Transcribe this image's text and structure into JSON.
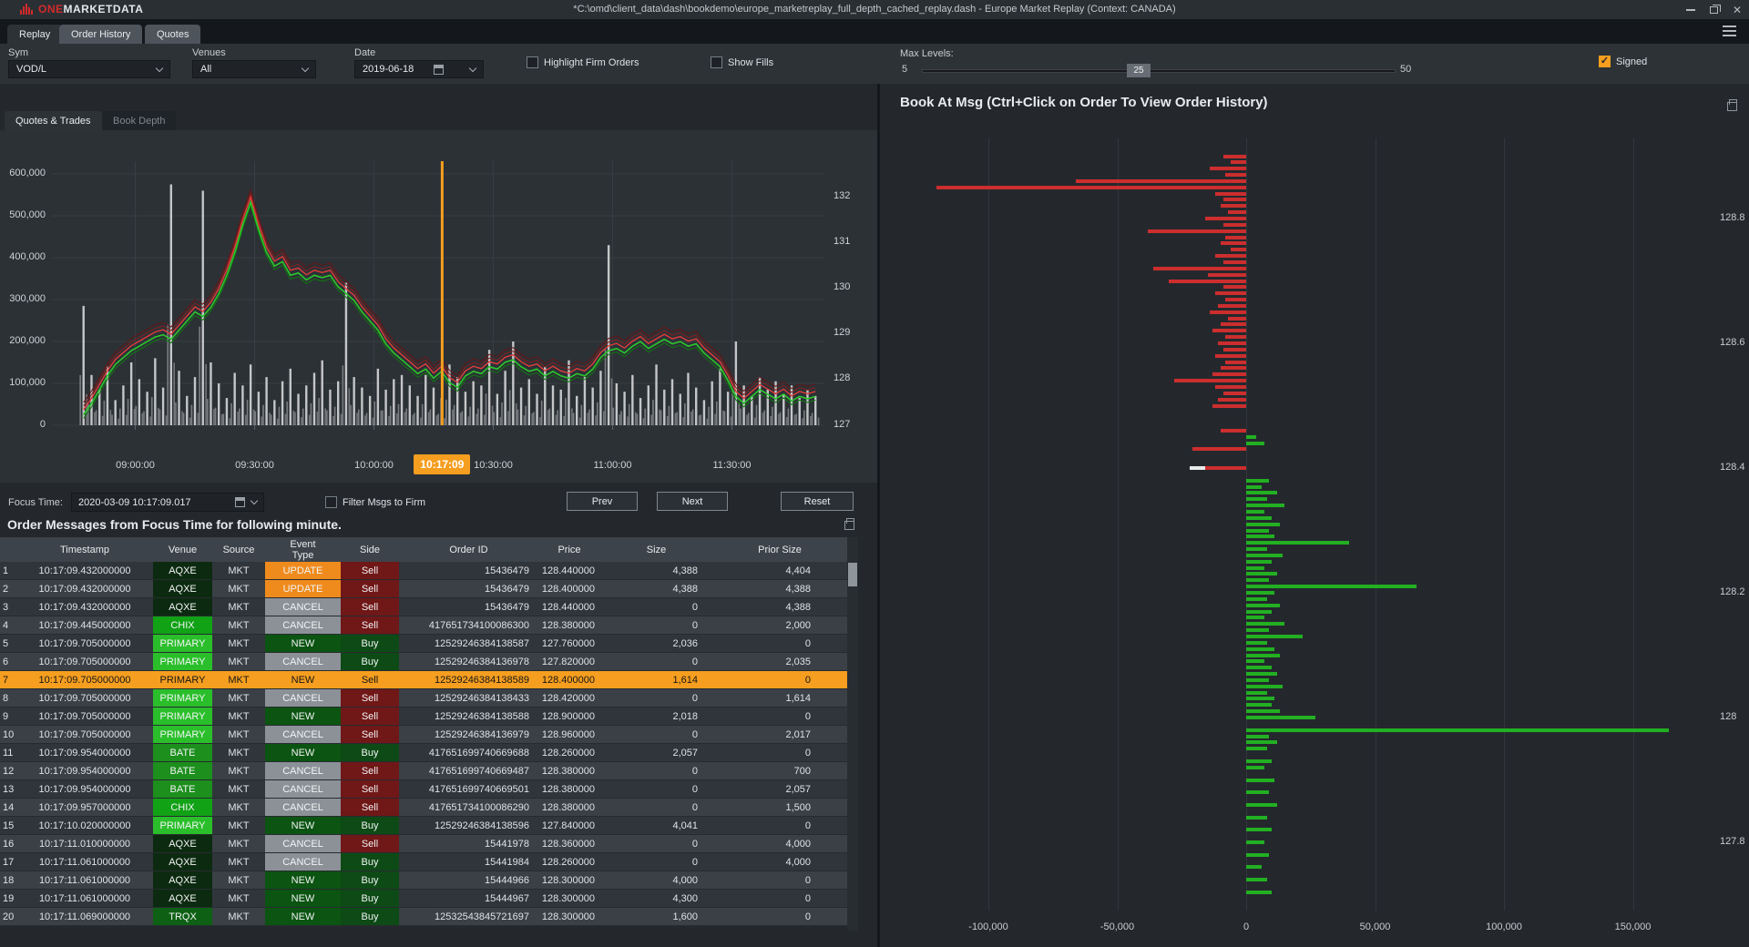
{
  "window": {
    "title": "*C:\\omd\\client_data\\dash\\bookdemo\\europe_marketreplay_full_depth_cached_replay.dash - Europe Market Replay (Context: CANADA)",
    "brand_one": "ONE",
    "brand_rest": "MARKETDATA"
  },
  "tabs": [
    {
      "label": "Replay",
      "active": true
    },
    {
      "label": "Order History",
      "active": false
    },
    {
      "label": "Quotes",
      "active": false
    }
  ],
  "toolbar": {
    "sym_label": "Sym",
    "sym_value": "VOD/L",
    "venues_label": "Venues",
    "venues_value": "All",
    "date_label": "Date",
    "date_value": "2019-06-18",
    "highlight_firm_orders_label": "Highlight Firm Orders",
    "show_fills_label": "Show Fills",
    "max_levels_label": "Max Levels:",
    "slider_min": "5",
    "slider_value": "25",
    "slider_max": "50",
    "signed_label": "Signed"
  },
  "left_panel": {
    "tab_quotes_trades": "Quotes & Trades",
    "tab_book_depth": "Book Depth",
    "panel_title": "Quotes & Trades",
    "focus_label": "Focus Time:",
    "focus_value": "2020-03-09 10:17:09.017",
    "filter_label": "Filter Msgs to Firm",
    "prev_label": "Prev",
    "next_label": "Next",
    "reset_label": "Reset",
    "messages_title": "Order Messages from Focus Time for following minute."
  },
  "right_panel": {
    "title": "Book At Msg  (Ctrl+Click on Order To View Order History)"
  },
  "table": {
    "columns": [
      "",
      "Timestamp",
      "Venue",
      "Source",
      "Event Type",
      "Side",
      "Order ID",
      "Price",
      "Size",
      "Prior Size"
    ],
    "highlighted_row": 7,
    "rows": [
      {
        "n": "1",
        "timestamp": "10:17:09.432000000",
        "venue": "AQXE",
        "source": "MKT",
        "event": "UPDATE",
        "side": "Sell",
        "order_id": "15436479",
        "price": "128.440000",
        "size": "4,388",
        "prior": "4,404"
      },
      {
        "n": "2",
        "timestamp": "10:17:09.432000000",
        "venue": "AQXE",
        "source": "MKT",
        "event": "UPDATE",
        "side": "Sell",
        "order_id": "15436479",
        "price": "128.400000",
        "size": "4,388",
        "prior": "4,388"
      },
      {
        "n": "3",
        "timestamp": "10:17:09.432000000",
        "venue": "AQXE",
        "source": "MKT",
        "event": "CANCEL",
        "side": "Sell",
        "order_id": "15436479",
        "price": "128.440000",
        "size": "0",
        "prior": "4,388"
      },
      {
        "n": "4",
        "timestamp": "10:17:09.445000000",
        "venue": "CHIX",
        "source": "MKT",
        "event": "CANCEL",
        "side": "Sell",
        "order_id": "417651734100086300",
        "price": "128.380000",
        "size": "0",
        "prior": "2,000"
      },
      {
        "n": "5",
        "timestamp": "10:17:09.705000000",
        "venue": "PRIMARY",
        "source": "MKT",
        "event": "NEW",
        "side": "Buy",
        "order_id": "12529246384138587",
        "price": "127.760000",
        "size": "2,036",
        "prior": "0"
      },
      {
        "n": "6",
        "timestamp": "10:17:09.705000000",
        "venue": "PRIMARY",
        "source": "MKT",
        "event": "CANCEL",
        "side": "Buy",
        "order_id": "12529246384136978",
        "price": "127.820000",
        "size": "0",
        "prior": "2,035"
      },
      {
        "n": "7",
        "timestamp": "10:17:09.705000000",
        "venue": "PRIMARY",
        "source": "MKT",
        "event": "NEW",
        "side": "Sell",
        "order_id": "12529246384138589",
        "price": "128.400000",
        "size": "1,614",
        "prior": "0"
      },
      {
        "n": "8",
        "timestamp": "10:17:09.705000000",
        "venue": "PRIMARY",
        "source": "MKT",
        "event": "CANCEL",
        "side": "Sell",
        "order_id": "12529246384138433",
        "price": "128.420000",
        "size": "0",
        "prior": "1,614"
      },
      {
        "n": "9",
        "timestamp": "10:17:09.705000000",
        "venue": "PRIMARY",
        "source": "MKT",
        "event": "NEW",
        "side": "Sell",
        "order_id": "12529246384138588",
        "price": "128.900000",
        "size": "2,018",
        "prior": "0"
      },
      {
        "n": "10",
        "timestamp": "10:17:09.705000000",
        "venue": "PRIMARY",
        "source": "MKT",
        "event": "CANCEL",
        "side": "Sell",
        "order_id": "12529246384136979",
        "price": "128.960000",
        "size": "0",
        "prior": "2,017"
      },
      {
        "n": "11",
        "timestamp": "10:17:09.954000000",
        "venue": "BATE",
        "source": "MKT",
        "event": "NEW",
        "side": "Buy",
        "order_id": "417651699740669688",
        "price": "128.260000",
        "size": "2,057",
        "prior": "0"
      },
      {
        "n": "12",
        "timestamp": "10:17:09.954000000",
        "venue": "BATE",
        "source": "MKT",
        "event": "CANCEL",
        "side": "Sell",
        "order_id": "417651699740669487",
        "price": "128.380000",
        "size": "0",
        "prior": "700"
      },
      {
        "n": "13",
        "timestamp": "10:17:09.954000000",
        "venue": "BATE",
        "source": "MKT",
        "event": "CANCEL",
        "side": "Sell",
        "order_id": "417651699740669501",
        "price": "128.380000",
        "size": "0",
        "prior": "2,057"
      },
      {
        "n": "14",
        "timestamp": "10:17:09.957000000",
        "venue": "CHIX",
        "source": "MKT",
        "event": "CANCEL",
        "side": "Sell",
        "order_id": "417651734100086290",
        "price": "128.380000",
        "size": "0",
        "prior": "1,500"
      },
      {
        "n": "15",
        "timestamp": "10:17:10.020000000",
        "venue": "PRIMARY",
        "source": "MKT",
        "event": "NEW",
        "side": "Buy",
        "order_id": "12529246384138596",
        "price": "127.840000",
        "size": "4,041",
        "prior": "0"
      },
      {
        "n": "16",
        "timestamp": "10:17:11.010000000",
        "venue": "AQXE",
        "source": "MKT",
        "event": "CANCEL",
        "side": "Sell",
        "order_id": "15441978",
        "price": "128.360000",
        "size": "0",
        "prior": "4,000"
      },
      {
        "n": "17",
        "timestamp": "10:17:11.061000000",
        "venue": "AQXE",
        "source": "MKT",
        "event": "CANCEL",
        "side": "Buy",
        "order_id": "15441984",
        "price": "128.260000",
        "size": "0",
        "prior": "4,000"
      },
      {
        "n": "18",
        "timestamp": "10:17:11.061000000",
        "venue": "AQXE",
        "source": "MKT",
        "event": "NEW",
        "side": "Buy",
        "order_id": "15444966",
        "price": "128.300000",
        "size": "4,000",
        "prior": "0"
      },
      {
        "n": "19",
        "timestamp": "10:17:11.061000000",
        "venue": "AQXE",
        "source": "MKT",
        "event": "NEW",
        "side": "Buy",
        "order_id": "15444967",
        "price": "128.300000",
        "size": "4,300",
        "prior": "0"
      },
      {
        "n": "20",
        "timestamp": "10:17:11.069000000",
        "venue": "TRQX",
        "source": "MKT",
        "event": "NEW",
        "side": "Buy",
        "order_id": "12532543845721697",
        "price": "128.300000",
        "size": "1,600",
        "prior": "0"
      }
    ]
  },
  "colors": {
    "accent_orange": "#f59e1f",
    "venue": {
      "AQXE": "#0c2a10",
      "CHIX": "#11a216",
      "PRIMARY": "#2abf2a",
      "BATE": "#1c8f1c",
      "TRQX": "#0e6014"
    },
    "event": {
      "UPDATE": "#ef8b1d",
      "CANCEL": "#8b9197",
      "NEW": "#0b5411"
    },
    "side": {
      "Sell": "#701717",
      "Buy": "#0d4a15"
    },
    "ask_red": "#cc2e2e",
    "bid_green": "#22b022"
  },
  "chart_data": [
    {
      "type": "line",
      "title": "Quotes & Trades",
      "xlabel": "",
      "ylabel_left": "volume",
      "ylabel_right": "price",
      "x_ticks": [
        "09:00:00",
        "09:30:00",
        "10:00:00",
        "10:30:00",
        "11:00:00",
        "11:30:00"
      ],
      "y_left_ticks": [
        "0",
        "100,000",
        "200,000",
        "300,000",
        "400,000",
        "500,000",
        "600,000"
      ],
      "y_right_ticks": [
        "132",
        "131",
        "130",
        "129",
        "128",
        "127"
      ],
      "focus_marker": {
        "label": "10:17:09",
        "time_min_from_0900": 77.15
      },
      "t_start_min": -13,
      "t_step_min": 2,
      "series": [
        {
          "name": "mid-price",
          "values": [
            127.25,
            127.5,
            127.8,
            128.1,
            128.35,
            128.5,
            128.65,
            128.75,
            128.85,
            128.95,
            129.0,
            128.9,
            129.1,
            129.3,
            129.5,
            129.4,
            129.6,
            129.9,
            130.3,
            130.8,
            131.4,
            131.9,
            131.3,
            130.8,
            130.5,
            130.6,
            130.3,
            130.35,
            130.2,
            130.3,
            130.25,
            130.3,
            130.05,
            129.9,
            129.75,
            129.5,
            129.3,
            129.1,
            128.8,
            128.6,
            128.45,
            128.3,
            128.15,
            128.25,
            128.05,
            128.2,
            127.95,
            127.85,
            128.1,
            128.2,
            128.15,
            128.3,
            128.25,
            128.4,
            128.45,
            128.3,
            128.2,
            128.25,
            128.1,
            128.2,
            128.1,
            128.05,
            128.15,
            128.1,
            128.25,
            128.5,
            128.65,
            128.7,
            128.6,
            128.75,
            128.85,
            128.7,
            128.8,
            128.9,
            128.8,
            128.85,
            128.75,
            128.8,
            128.6,
            128.45,
            128.3,
            128.0,
            127.65,
            127.5,
            127.65,
            127.8,
            127.7,
            127.6,
            127.7,
            127.55,
            127.65,
            127.6,
            127.65
          ]
        },
        {
          "name": "volume-thousands",
          "values": [
            285,
            120,
            85,
            140,
            60,
            95,
            150,
            110,
            80,
            160,
            90,
            575,
            130,
            70,
            115,
            560,
            150,
            100,
            65,
            125,
            95,
            145,
            80,
            115,
            60,
            105,
            135,
            75,
            95,
            125,
            155,
            85,
            105,
            340,
            115,
            90,
            70,
            135,
            85,
            110,
            120,
            95,
            70,
            120,
            90,
            65,
            145,
            115,
            80,
            105,
            95,
            180,
            75,
            130,
            200,
            90,
            110,
            75,
            140,
            95,
            85,
            155,
            70,
            115,
            90,
            130,
            430,
            100,
            80,
            120,
            65,
            95,
            145,
            85,
            110,
            75,
            125,
            90,
            60,
            105,
            135,
            80,
            200,
            95,
            70,
            115,
            85,
            105,
            75,
            95,
            65,
            85,
            70
          ]
        }
      ],
      "line_offsets": [
        {
          "name": "ask-depth-outer",
          "offset": 0.24,
          "color": "#641616",
          "w": 1
        },
        {
          "name": "ask-depth",
          "offset": 0.16,
          "color": "#8c1d1d",
          "w": 1
        },
        {
          "name": "ask",
          "offset": 0.08,
          "color": "#e23b3b",
          "w": 1.4
        },
        {
          "name": "bid-depth",
          "offset": -0.11,
          "color": "#0f7a0f",
          "w": 1
        },
        {
          "name": "bid",
          "offset": -0.03,
          "color": "#2bc82b",
          "w": 1.6
        }
      ],
      "ylim_left": [
        0,
        600000
      ],
      "ylim_right": [
        127,
        132
      ],
      "grid": true
    },
    {
      "type": "bar",
      "orientation": "horizontal",
      "title": "Book At Msg  (Ctrl+Click on Order To View Order History)",
      "x_ticks": [
        "-100,000",
        "-50,000",
        "0",
        "50,000",
        "100,000",
        "150,000"
      ],
      "x_tick_values": [
        -100000,
        -50000,
        0,
        50000,
        100000,
        150000
      ],
      "y_ticks": [
        "128.8",
        "128.6",
        "128.4",
        "128.2",
        "128",
        "127.8"
      ],
      "y_tick_values": [
        128.8,
        128.6,
        128.4,
        128.2,
        128.0,
        127.8
      ],
      "asks_price_size": [
        [
          128.9,
          9000
        ],
        [
          128.89,
          6000
        ],
        [
          128.88,
          14000
        ],
        [
          128.87,
          8000
        ],
        [
          128.86,
          66000
        ],
        [
          128.85,
          120000
        ],
        [
          128.84,
          12000
        ],
        [
          128.83,
          9000
        ],
        [
          128.82,
          10000
        ],
        [
          128.81,
          7000
        ],
        [
          128.8,
          16000
        ],
        [
          128.79,
          9000
        ],
        [
          128.78,
          38000
        ],
        [
          128.77,
          8000
        ],
        [
          128.76,
          10000
        ],
        [
          128.75,
          6000
        ],
        [
          128.74,
          12000
        ],
        [
          128.73,
          9000
        ],
        [
          128.72,
          36000
        ],
        [
          128.71,
          15000
        ],
        [
          128.7,
          30000
        ],
        [
          128.69,
          9000
        ],
        [
          128.68,
          12000
        ],
        [
          128.67,
          8000
        ],
        [
          128.66,
          11000
        ],
        [
          128.65,
          14000
        ],
        [
          128.64,
          7000
        ],
        [
          128.63,
          10000
        ],
        [
          128.62,
          13000
        ],
        [
          128.61,
          8000
        ],
        [
          128.6,
          11000
        ],
        [
          128.59,
          9000
        ],
        [
          128.58,
          12000
        ],
        [
          128.57,
          8000
        ],
        [
          128.56,
          10000
        ],
        [
          128.55,
          13000
        ],
        [
          128.54,
          28000
        ],
        [
          128.53,
          12000
        ],
        [
          128.52,
          9000
        ],
        [
          128.51,
          11000
        ],
        [
          128.5,
          13000
        ],
        [
          128.46,
          10000
        ],
        [
          128.43,
          21000
        ]
      ],
      "bids_price_size": [
        [
          128.45,
          4000
        ],
        [
          128.44,
          7000
        ],
        [
          128.38,
          9000
        ],
        [
          128.37,
          6000
        ],
        [
          128.36,
          12000
        ],
        [
          128.35,
          8000
        ],
        [
          128.34,
          15000
        ],
        [
          128.33,
          7000
        ],
        [
          128.32,
          10000
        ],
        [
          128.31,
          13000
        ],
        [
          128.3,
          9000
        ],
        [
          128.29,
          11000
        ],
        [
          128.28,
          40000
        ],
        [
          128.27,
          8000
        ],
        [
          128.26,
          14000
        ],
        [
          128.25,
          10000
        ],
        [
          128.24,
          7000
        ],
        [
          128.23,
          12000
        ],
        [
          128.22,
          9000
        ],
        [
          128.21,
          66000
        ],
        [
          128.2,
          11000
        ],
        [
          128.19,
          8000
        ],
        [
          128.18,
          13000
        ],
        [
          128.17,
          10000
        ],
        [
          128.16,
          7000
        ],
        [
          128.15,
          15000
        ],
        [
          128.14,
          9000
        ],
        [
          128.13,
          22000
        ],
        [
          128.12,
          8000
        ],
        [
          128.11,
          11000
        ],
        [
          128.1,
          13000
        ],
        [
          128.09,
          7000
        ],
        [
          128.08,
          10000
        ],
        [
          128.07,
          12000
        ],
        [
          128.06,
          9000
        ],
        [
          128.05,
          14000
        ],
        [
          128.04,
          8000
        ],
        [
          128.03,
          11000
        ],
        [
          128.02,
          10000
        ],
        [
          128.01,
          13000
        ],
        [
          128.0,
          27000
        ],
        [
          127.98,
          164000
        ],
        [
          127.97,
          9000
        ],
        [
          127.96,
          12000
        ],
        [
          127.95,
          8000
        ],
        [
          127.93,
          10000
        ],
        [
          127.92,
          7000
        ],
        [
          127.9,
          11000
        ],
        [
          127.88,
          9000
        ],
        [
          127.86,
          12000
        ],
        [
          127.84,
          8000
        ],
        [
          127.82,
          10000
        ],
        [
          127.8,
          7000
        ],
        [
          127.78,
          9000
        ],
        [
          127.76,
          6000
        ],
        [
          127.74,
          8000
        ],
        [
          127.72,
          10000
        ]
      ],
      "focus_order": {
        "price": 128.4,
        "white_size": 6000,
        "red_size": 16000
      },
      "xlim": [
        -130000,
        190000
      ],
      "grid": true
    }
  ]
}
